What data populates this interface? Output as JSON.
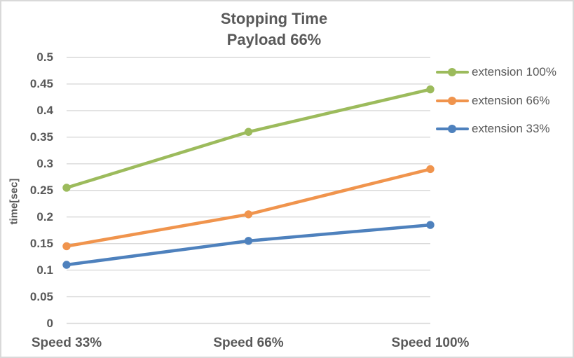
{
  "chart": {
    "title_line1": "Stopping Time",
    "title_line2": "Payload 66%",
    "y_axis_title": "time[sec]",
    "text_color": "#595959",
    "gridline_color": "#d9d9d9",
    "frame_border_color": "#d9d9d9",
    "background_color": "#ffffff"
  },
  "chart_data": {
    "type": "line",
    "title": "Stopping Time",
    "subtitle": "Payload 66%",
    "categories": [
      "Speed 33%",
      "Speed 66%",
      "Speed 100%"
    ],
    "series": [
      {
        "name": "extension 100%",
        "color": "#9cbb5c",
        "values": [
          0.255,
          0.36,
          0.44
        ]
      },
      {
        "name": "extension 66%",
        "color": "#f0944d",
        "values": [
          0.145,
          0.205,
          0.29
        ]
      },
      {
        "name": "extension 33%",
        "color": "#4e81bd",
        "values": [
          0.11,
          0.155,
          0.185
        ]
      }
    ],
    "xlabel": "",
    "ylabel": "time[sec]",
    "ylim": [
      0,
      0.5
    ],
    "yticks": [
      "0",
      "0.05",
      "0.1",
      "0.15",
      "0.2",
      "0.25",
      "0.3",
      "0.35",
      "0.4",
      "0.45",
      "0.5"
    ],
    "grid": true,
    "legend_position": "right",
    "marker": "circle"
  }
}
